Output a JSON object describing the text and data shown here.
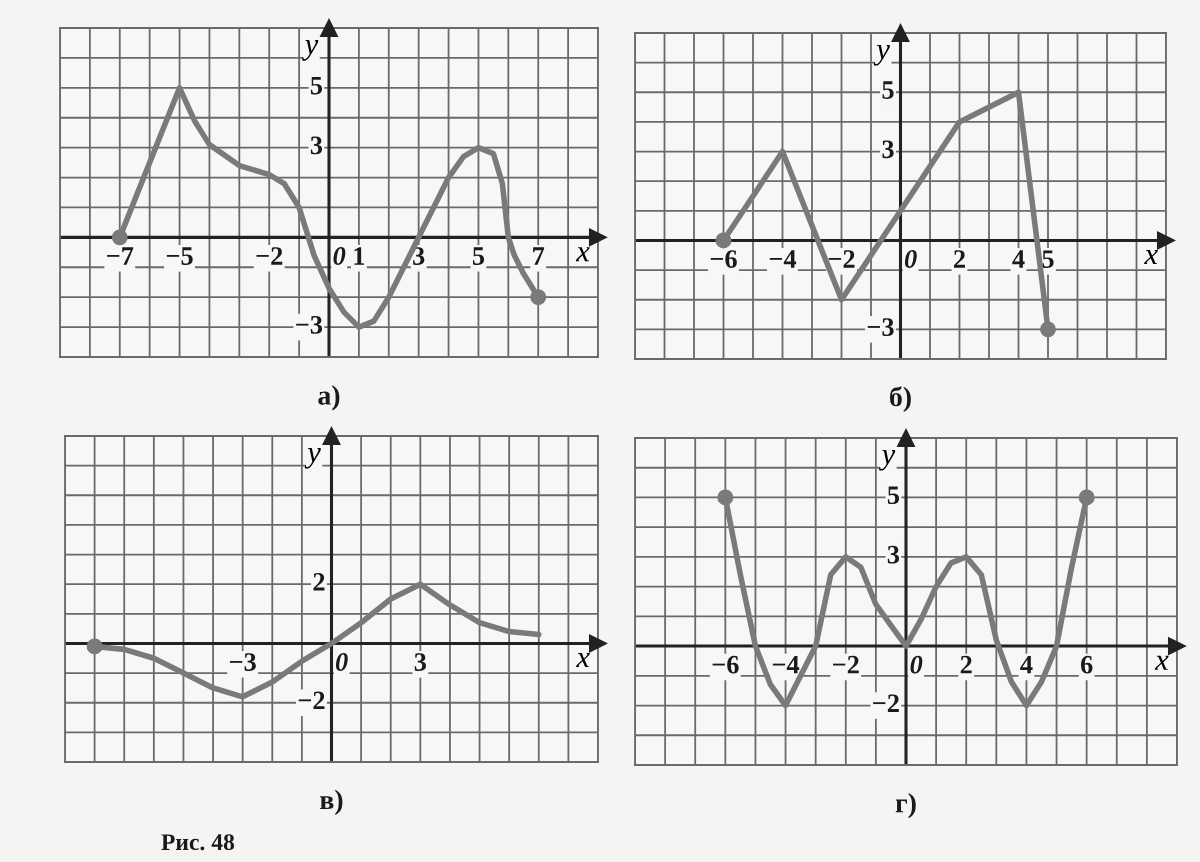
{
  "chart_data": [
    {
      "type": "line",
      "title": "а)",
      "xlabel": "x",
      "ylabel": "y",
      "xlim": [
        -9,
        9
      ],
      "ylim": [
        -4,
        7
      ],
      "xticks": [
        {
          "value": -9,
          "label": null
        },
        {
          "value": -8,
          "label": null
        },
        -7,
        {
          "value": -6,
          "label": null
        },
        -5,
        {
          "value": -4,
          "label": null
        },
        {
          "value": -3,
          "label": null
        },
        -2,
        {
          "value": -1,
          "label": null
        },
        0,
        1,
        {
          "value": 2,
          "label": null
        },
        3,
        {
          "value": 4,
          "label": null
        },
        5,
        {
          "value": 6,
          "label": null
        },
        7,
        {
          "value": 8,
          "label": null
        },
        {
          "value": 9,
          "label": null
        }
      ],
      "yticks": [
        {
          "value": -4,
          "label": null
        },
        -3,
        {
          "value": -2,
          "label": null
        },
        {
          "value": -1,
          "label": null
        },
        {
          "value": 0,
          "label": null
        },
        {
          "value": 1,
          "label": null
        },
        {
          "value": 2,
          "label": null
        },
        3,
        {
          "value": 4,
          "label": null
        },
        5,
        {
          "value": 6,
          "label": null
        },
        {
          "value": 7,
          "label": null
        }
      ],
      "grid": true,
      "series": [
        {
          "color": "#7a7a7a",
          "x": [
            -7,
            -5,
            -4.5,
            -4,
            -3,
            -2,
            -1.5,
            -1,
            -0.5,
            0,
            0.5,
            1,
            1.5,
            2,
            2.5,
            3,
            3.5,
            4,
            4.5,
            5,
            5.5,
            5.8,
            6,
            6.2,
            6.5,
            7
          ],
          "values": [
            0,
            5,
            3.9,
            3.1,
            2.4,
            2.1,
            1.8,
            1.0,
            -0.6,
            -1.7,
            -2.5,
            -3,
            -2.8,
            -2.0,
            -1.0,
            0,
            1.0,
            2.0,
            2.7,
            3,
            2.8,
            1.8,
            0,
            -0.6,
            -1.2,
            -2
          ]
        },
        {
          "type": "scatter",
          "color": "#7a7a7a",
          "marker": "circle",
          "x": [
            -7,
            7
          ],
          "values": [
            0,
            -2
          ]
        }
      ]
    },
    {
      "type": "line",
      "title": "б)",
      "xlabel": "x",
      "ylabel": "y",
      "xlim": [
        -9,
        9
      ],
      "ylim": [
        -4,
        7
      ],
      "xticks": [
        {
          "value": -9,
          "label": null
        },
        {
          "value": -8,
          "label": null
        },
        {
          "value": -7,
          "label": null
        },
        -6,
        {
          "value": -5,
          "label": null
        },
        -4,
        {
          "value": -3,
          "label": null
        },
        -2,
        {
          "value": -1,
          "label": null
        },
        0,
        {
          "value": 1,
          "label": null
        },
        2,
        {
          "value": 3,
          "label": null
        },
        4,
        5,
        {
          "value": 6,
          "label": null
        },
        {
          "value": 7,
          "label": null
        },
        {
          "value": 8,
          "label": null
        },
        {
          "value": 9,
          "label": null
        }
      ],
      "yticks": [
        {
          "value": -4,
          "label": null
        },
        -3,
        {
          "value": -2,
          "label": null
        },
        {
          "value": -1,
          "label": null
        },
        {
          "value": 0,
          "label": null
        },
        {
          "value": 1,
          "label": null
        },
        {
          "value": 2,
          "label": null
        },
        3,
        {
          "value": 4,
          "label": null
        },
        5,
        {
          "value": 6,
          "label": null
        },
        {
          "value": 7,
          "label": null
        }
      ],
      "grid": true,
      "series": [
        {
          "color": "#7a7a7a",
          "x": [
            -6,
            -4,
            -2,
            0,
            2,
            4,
            5
          ],
          "values": [
            0,
            3,
            -2,
            1,
            4,
            5,
            -3
          ]
        },
        {
          "type": "scatter",
          "color": "#7a7a7a",
          "marker": "circle",
          "x": [
            -6,
            5
          ],
          "values": [
            0,
            -3
          ]
        }
      ]
    },
    {
      "type": "line",
      "title": "в)",
      "xlabel": "x",
      "ylabel": "y",
      "xlim": [
        -9,
        9
      ],
      "ylim": [
        -4,
        7
      ],
      "xticks": [
        {
          "value": -9,
          "label": null
        },
        {
          "value": -8,
          "label": null
        },
        {
          "value": -7,
          "label": null
        },
        {
          "value": -6,
          "label": null
        },
        {
          "value": -5,
          "label": null
        },
        {
          "value": -4,
          "label": null
        },
        -3,
        {
          "value": -2,
          "label": null
        },
        {
          "value": -1,
          "label": null
        },
        0,
        {
          "value": 1,
          "label": null
        },
        {
          "value": 2,
          "label": null
        },
        3,
        {
          "value": 4,
          "label": null
        },
        {
          "value": 5,
          "label": null
        },
        {
          "value": 6,
          "label": null
        },
        {
          "value": 7,
          "label": null
        },
        {
          "value": 8,
          "label": null
        },
        {
          "value": 9,
          "label": null
        }
      ],
      "yticks": [
        {
          "value": -4,
          "label": null
        },
        {
          "value": -3,
          "label": null
        },
        -2,
        {
          "value": -1,
          "label": null
        },
        {
          "value": 0,
          "label": null
        },
        {
          "value": 1,
          "label": null
        },
        2,
        {
          "value": 3,
          "label": null
        },
        {
          "value": 4,
          "label": null
        },
        {
          "value": 5,
          "label": null
        },
        {
          "value": 6,
          "label": null
        },
        {
          "value": 7,
          "label": null
        }
      ],
      "grid": true,
      "annotations": [
        "Рис. 48"
      ],
      "series": [
        {
          "color": "#7a7a7a",
          "x": [
            -8,
            -7,
            -6,
            -5,
            -4,
            -3,
            -2,
            -1,
            0,
            1,
            2,
            3,
            4,
            5,
            6,
            7
          ],
          "values": [
            -0.1,
            -0.2,
            -0.5,
            -1.0,
            -1.5,
            -1.8,
            -1.3,
            -0.6,
            0,
            0.7,
            1.5,
            2,
            1.3,
            0.7,
            0.4,
            0.3
          ]
        },
        {
          "type": "scatter",
          "color": "#7a7a7a",
          "marker": "circle",
          "x": [
            -8
          ],
          "values": [
            -0.1
          ]
        }
      ]
    },
    {
      "type": "line",
      "title": "г)",
      "xlabel": "x",
      "ylabel": "y",
      "xlim": [
        -9,
        9
      ],
      "ylim": [
        -4,
        7
      ],
      "xticks": [
        {
          "value": -9,
          "label": null
        },
        {
          "value": -8,
          "label": null
        },
        {
          "value": -7,
          "label": null
        },
        -6,
        {
          "value": -5,
          "label": null
        },
        -4,
        {
          "value": -3,
          "label": null
        },
        -2,
        {
          "value": -1,
          "label": null
        },
        0,
        {
          "value": 1,
          "label": null
        },
        2,
        {
          "value": 3,
          "label": null
        },
        4,
        {
          "value": 5,
          "label": null
        },
        6,
        {
          "value": 7,
          "label": null
        },
        {
          "value": 8,
          "label": null
        },
        {
          "value": 9,
          "label": null
        }
      ],
      "yticks": [
        {
          "value": -4,
          "label": null
        },
        {
          "value": -3,
          "label": null
        },
        -2,
        {
          "value": -1,
          "label": null
        },
        {
          "value": 0,
          "label": null
        },
        {
          "value": 1,
          "label": null
        },
        {
          "value": 2,
          "label": null
        },
        3,
        {
          "value": 4,
          "label": null
        },
        5,
        {
          "value": 6,
          "label": null
        },
        {
          "value": 7,
          "label": null
        }
      ],
      "grid": true,
      "series": [
        {
          "color": "#7a7a7a",
          "x": [
            -6,
            -5.5,
            -5,
            -4.5,
            -4,
            -3.5,
            -3,
            -2.5,
            -2,
            -1.5,
            -1,
            -0.5,
            0,
            0.5,
            1,
            1.5,
            2,
            2.5,
            3,
            3.5,
            4,
            4.5,
            5,
            5.5,
            6
          ],
          "values": [
            5,
            2.4,
            0,
            -1.3,
            -2,
            -1.0,
            0,
            2.4,
            3,
            2.65,
            1.4,
            0.7,
            0,
            0.9,
            2.0,
            2.8,
            3,
            2.4,
            0.2,
            -1.2,
            -2,
            -1.2,
            0,
            2.65,
            5
          ]
        },
        {
          "type": "scatter",
          "color": "#7a7a7a",
          "marker": "circle",
          "x": [
            -6,
            6
          ],
          "values": [
            5,
            5
          ]
        }
      ]
    }
  ]
}
